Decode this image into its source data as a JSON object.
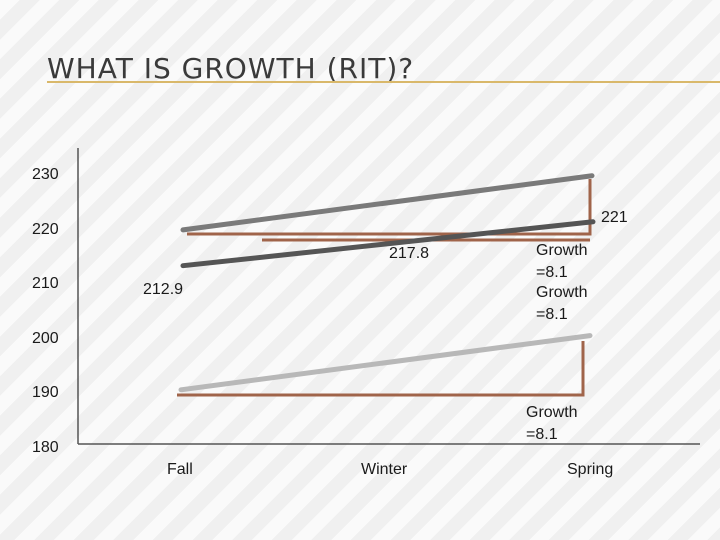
{
  "slide": {
    "title": "WHAT IS GROWTH (RIT)?"
  },
  "chart_data": {
    "type": "line",
    "title": "WHAT IS GROWTH (RIT)?",
    "categories": [
      "Fall",
      "Winter",
      "Spring"
    ],
    "ylim": [
      180,
      230
    ],
    "yticks": [
      "230",
      "220",
      "210",
      "200",
      "190",
      "180"
    ],
    "series": [
      {
        "values": [
          219.5,
          224.5,
          229.5
        ],
        "color": "#7a7a7a"
      },
      {
        "values": [
          212.9,
          217.8,
          221
        ],
        "color": "#555555"
      },
      {
        "values": [
          190,
          195,
          200
        ],
        "color": "#b8b8b8"
      }
    ],
    "growth_markers": [
      {
        "color": "#a0644a",
        "from": 221,
        "to": 229
      },
      {
        "color": "#a0644a",
        "from": 221,
        "to": 219
      },
      {
        "color": "#a0644a",
        "from": 189.5,
        "to": 200
      }
    ],
    "data_labels": [
      "221",
      "217.8",
      "212.9"
    ],
    "annotations": [
      "Growth =8.1",
      "Growth =8.1",
      "Growth =8.1"
    ],
    "grid": false
  },
  "colors": {
    "title_rule": "#d9b86a",
    "axis": "#555555",
    "bracket": "#a0644a"
  }
}
